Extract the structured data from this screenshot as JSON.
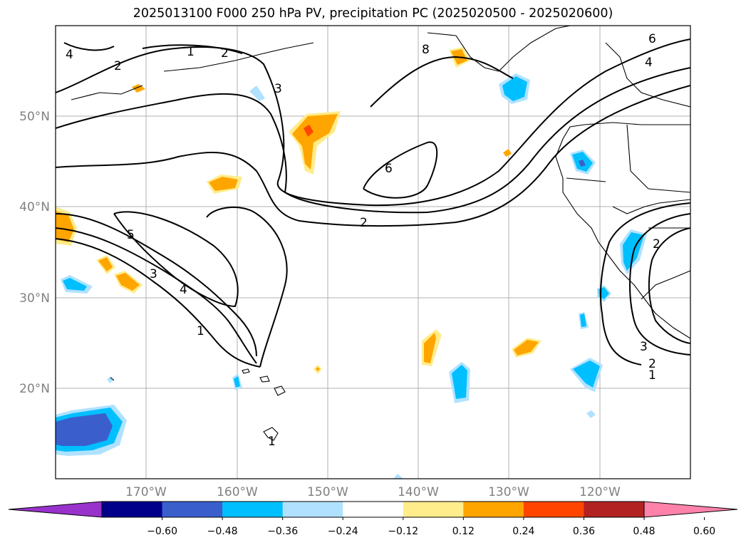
{
  "title": "2025013100 F000 250 hPa PV, precipitation PC (2025020500 - 2025020600)",
  "map": {
    "lat_labels": [
      "50°N",
      "40°N",
      "30°N",
      "20°N"
    ],
    "lon_labels": [
      "170°W",
      "160°W",
      "150°W",
      "140°W",
      "130°W",
      "120°W"
    ],
    "contour_labels": [
      "4",
      "2",
      "1",
      "2",
      "3",
      "8",
      "6",
      "4",
      "6",
      "2",
      "5",
      "3",
      "4",
      "1",
      "2",
      "3",
      "2",
      "1",
      "1"
    ]
  },
  "colorbar": {
    "tick_labels": [
      "−0.60",
      "−0.48",
      "−0.36",
      "−0.24",
      "−0.12",
      "0.12",
      "0.24",
      "0.36",
      "0.48",
      "0.60"
    ],
    "colors": [
      "#9932cc",
      "#00008b",
      "#3a5fcd",
      "#00bfff",
      "#b0e2ff",
      "#ffffff",
      "#ffec8b",
      "#ffa500",
      "#ff4500",
      "#b22222",
      "#ff82ab"
    ]
  }
}
